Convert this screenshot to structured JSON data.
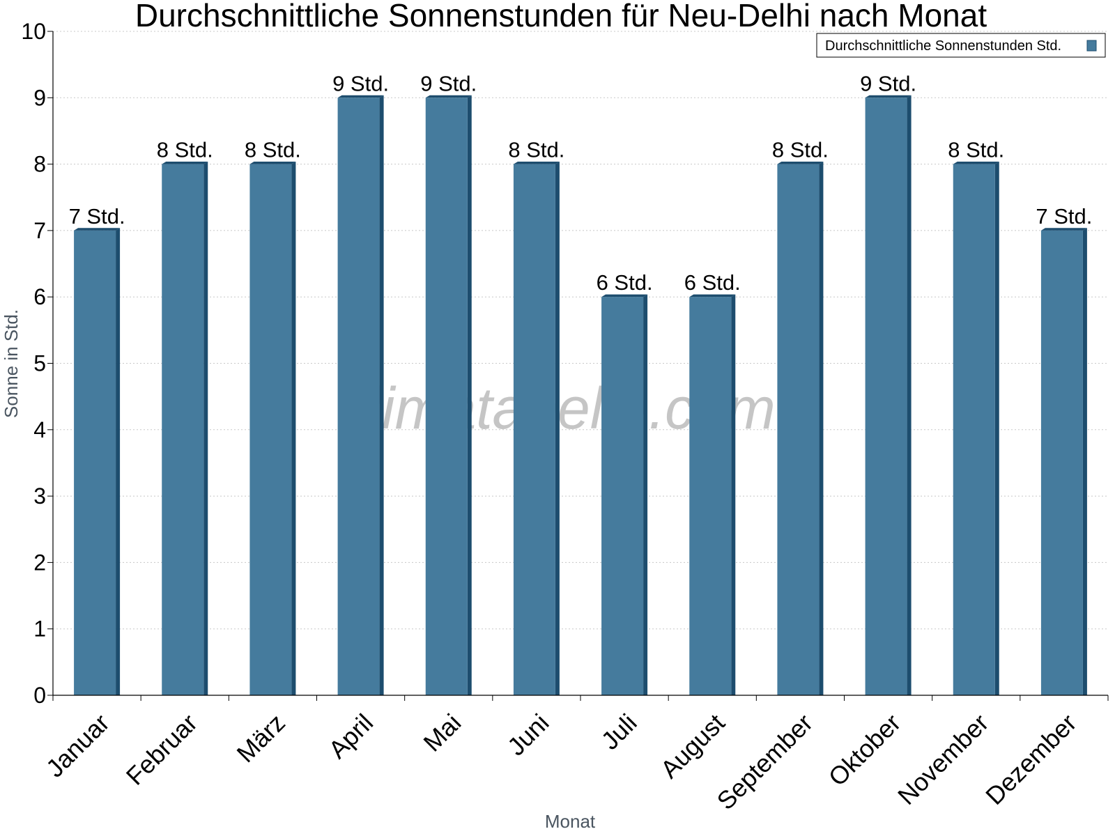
{
  "chart_data": {
    "type": "bar",
    "title": "Durchschnittliche Sonnenstunden für Neu-Delhi nach Monat",
    "xlabel": "Monat",
    "ylabel": "Sonne in Std.",
    "ylim": [
      0,
      10
    ],
    "yticks": [
      0,
      1,
      2,
      3,
      4,
      5,
      6,
      7,
      8,
      9,
      10
    ],
    "grid": true,
    "legend_position": "top-right",
    "categories": [
      "Januar",
      "Februar",
      "März",
      "April",
      "Mai",
      "Juni",
      "Juli",
      "August",
      "September",
      "Oktober",
      "November",
      "Dezember"
    ],
    "series": [
      {
        "name": "Durchschnittliche Sonnenstunden Std.",
        "values": [
          7,
          8,
          8,
          9,
          9,
          8,
          6,
          6,
          8,
          9,
          8,
          7
        ],
        "labels": [
          "7 Std.",
          "8 Std.",
          "8 Std.",
          "9 Std.",
          "9 Std.",
          "8 Std.",
          "6 Std.",
          "6 Std.",
          "8 Std.",
          "9 Std.",
          "8 Std.",
          "7 Std."
        ],
        "color": "#457b9d",
        "side_color": "#1d4d6e"
      }
    ],
    "watermark": "klimatabelle.com"
  }
}
